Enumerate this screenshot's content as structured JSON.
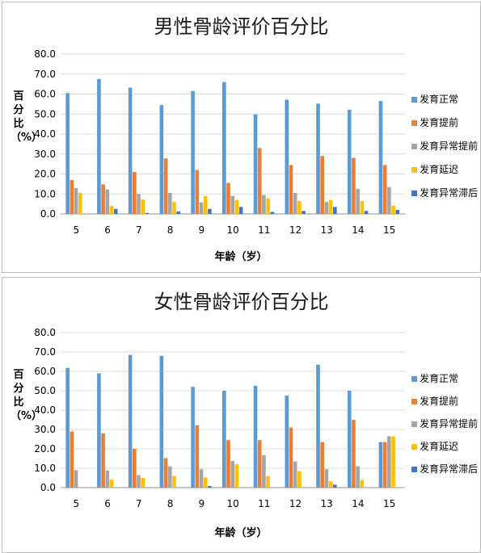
{
  "chart_data": [
    {
      "type": "bar",
      "title": "男性骨龄评价百分比",
      "xlabel": "年龄（岁）",
      "ylabel": "百分比（%）",
      "ylim": [
        0,
        80
      ],
      "y_ticks": [
        "0.0",
        "10.0",
        "20.0",
        "30.0",
        "40.0",
        "50.0",
        "60.0",
        "70.0",
        "80.0"
      ],
      "grid": true,
      "legend_position": "right",
      "categories": [
        "5",
        "6",
        "7",
        "8",
        "9",
        "10",
        "11",
        "12",
        "13",
        "14",
        "15"
      ],
      "series": [
        {
          "name": "发育正常",
          "color": "#5b9bd5",
          "values": [
            60.5,
            67.5,
            63.2,
            54.5,
            61.5,
            66.0,
            49.8,
            57.2,
            55.2,
            52.2,
            56.5
          ]
        },
        {
          "name": "发育提前",
          "color": "#ed7d31",
          "values": [
            17.0,
            14.8,
            21.0,
            27.8,
            22.0,
            15.5,
            33.0,
            24.5,
            29.0,
            28.0,
            24.5
          ]
        },
        {
          "name": "发育异常提前",
          "color": "#a5a5a5",
          "values": [
            13.0,
            12.2,
            10.0,
            10.5,
            5.8,
            9.0,
            9.5,
            10.5,
            6.0,
            12.5,
            13.5
          ]
        },
        {
          "name": "发育延迟",
          "color": "#ffc000",
          "values": [
            10.5,
            4.0,
            7.2,
            6.0,
            9.0,
            7.0,
            7.8,
            6.5,
            7.0,
            6.5,
            4.2
          ]
        },
        {
          "name": "发育异常滞后",
          "color": "#4472c4",
          "values": [
            0.0,
            2.5,
            0.5,
            1.2,
            2.5,
            3.5,
            1.0,
            1.5,
            3.5,
            1.5,
            2.0
          ]
        }
      ]
    },
    {
      "type": "bar",
      "title": "女性骨龄评价百分比",
      "xlabel": "年龄（岁）",
      "ylabel": "百分比（%）",
      "ylim": [
        0,
        80
      ],
      "y_ticks": [
        "0.0",
        "10.0",
        "20.0",
        "30.0",
        "40.0",
        "50.0",
        "60.0",
        "70.0",
        "80.0"
      ],
      "grid": true,
      "legend_position": "right",
      "categories": [
        "5",
        "6",
        "7",
        "8",
        "9",
        "10",
        "11",
        "12",
        "13",
        "14",
        "15"
      ],
      "series": [
        {
          "name": "发育正常",
          "color": "#5b9bd5",
          "values": [
            61.8,
            59.0,
            68.5,
            68.0,
            52.0,
            50.0,
            52.5,
            47.5,
            63.5,
            50.0,
            23.5
          ]
        },
        {
          "name": "发育提前",
          "color": "#ed7d31",
          "values": [
            29.0,
            28.0,
            20.0,
            15.2,
            32.2,
            24.5,
            24.5,
            31.0,
            23.5,
            35.0,
            23.5
          ]
        },
        {
          "name": "发育异常提前",
          "color": "#a5a5a5",
          "values": [
            9.0,
            8.8,
            6.5,
            11.0,
            9.5,
            13.8,
            16.8,
            13.5,
            9.5,
            11.0,
            26.5
          ]
        },
        {
          "name": "发育延迟",
          "color": "#ffc000",
          "values": [
            0.0,
            4.2,
            5.0,
            6.0,
            5.2,
            12.0,
            6.0,
            8.5,
            3.2,
            4.0,
            26.5
          ]
        },
        {
          "name": "发育异常滞后",
          "color": "#4472c4",
          "values": [
            0.0,
            0.0,
            0.0,
            0.0,
            0.8,
            0.0,
            0.0,
            0.0,
            1.5,
            0.0,
            0.0
          ]
        }
      ]
    }
  ]
}
